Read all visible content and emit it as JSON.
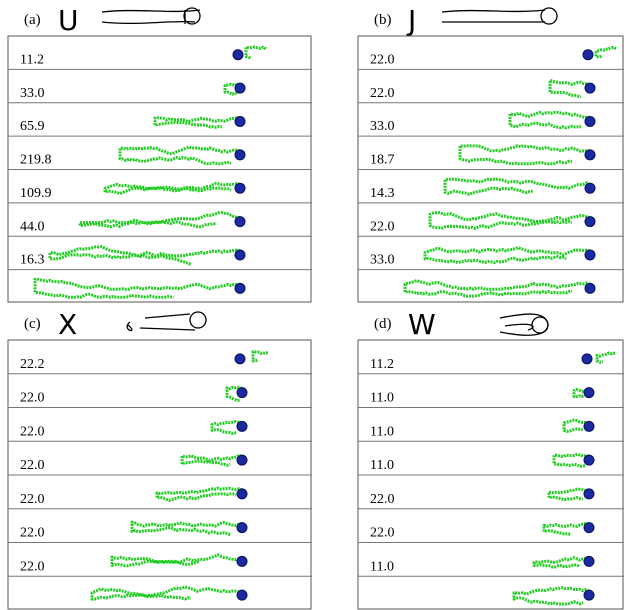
{
  "panels": [
    {
      "label": "(a)",
      "letter": "U",
      "intervals": [
        "11.2",
        "33.0",
        "65.9",
        "219.8",
        "109.9",
        "44.0",
        "16.3"
      ]
    },
    {
      "label": "(b)",
      "letter": "J",
      "intervals": [
        "22.0",
        "22.0",
        "33.0",
        "18.7",
        "14.3",
        "22.0",
        "33.0"
      ]
    },
    {
      "label": "(c)",
      "letter": "X",
      "intervals": [
        "22.2",
        "22.0",
        "22.0",
        "22.0",
        "22.0",
        "22.0",
        "22.0"
      ]
    },
    {
      "label": "(d)",
      "letter": "W",
      "intervals": [
        "11.2",
        "11.0",
        "11.0",
        "11.0",
        "22.0",
        "22.0",
        "11.0"
      ]
    }
  ]
}
